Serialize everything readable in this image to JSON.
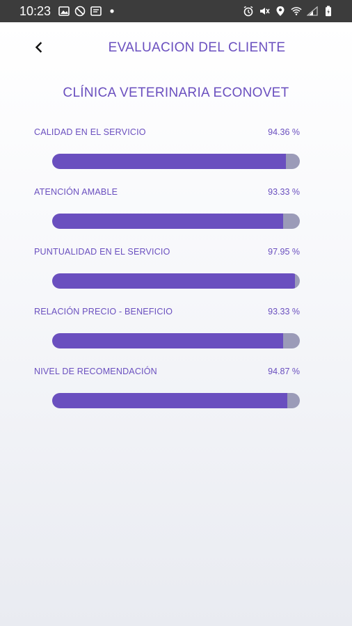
{
  "status_bar": {
    "time": "10:23",
    "left_icons": [
      "image-icon",
      "do-not-disturb-icon",
      "notification-icon",
      "dot-icon"
    ],
    "right_icons": [
      "alarm-icon",
      "mute-icon",
      "location-icon",
      "wifi-icon",
      "signal-icon",
      "battery-icon"
    ]
  },
  "header": {
    "back_icon": "chevron-left-icon",
    "title": "EVALUACION DEL CLIENTE"
  },
  "clinic": {
    "name": "CLÍNICA VETERINARIA ECONOVET"
  },
  "colors": {
    "accent": "#6a4fbf",
    "track": "#9b9bb8"
  },
  "ratings": [
    {
      "label": "CALIDAD EN EL SERVICIO",
      "value_text": "94.36 %",
      "percent": 94.36
    },
    {
      "label": "ATENCIÓN AMABLE",
      "value_text": "93.33 %",
      "percent": 93.33
    },
    {
      "label": "PUNTUALIDAD EN EL SERVICIO",
      "value_text": "97.95 %",
      "percent": 97.95
    },
    {
      "label": "RELACIÓN PRECIO - BENEFICIO",
      "value_text": "93.33 %",
      "percent": 93.33
    },
    {
      "label": "NIVEL DE RECOMENDACIÓN",
      "value_text": "94.87 %",
      "percent": 94.87
    }
  ]
}
